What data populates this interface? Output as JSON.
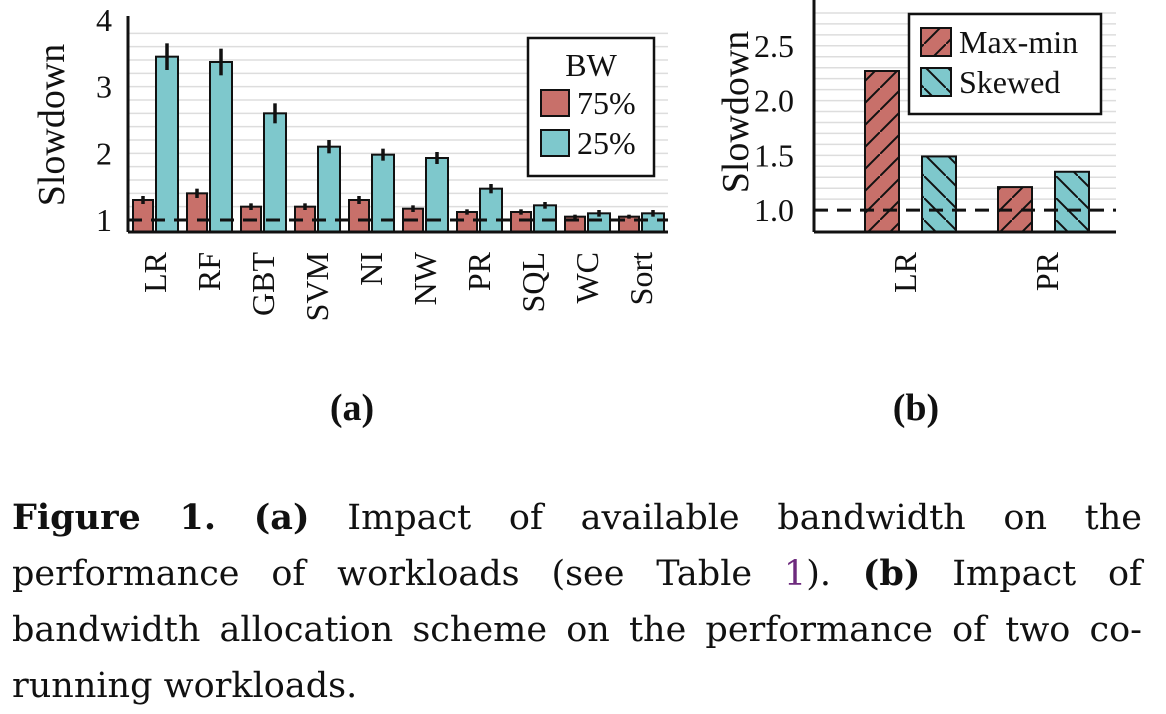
{
  "chart_data": [
    {
      "type": "bar",
      "panel_label": "(a)",
      "categories": [
        "LR",
        "RF",
        "GBT",
        "SVM",
        "NI",
        "NW",
        "PR",
        "SQL",
        "WC",
        "Sort"
      ],
      "ylabel": "Slowdown",
      "xlabel": "",
      "ylim": [
        0.82,
        4.0
      ],
      "yticks": [
        1,
        2,
        3,
        4
      ],
      "grid": true,
      "reference_line": 1.0,
      "legend": {
        "title": "BW",
        "placement": "top-right"
      },
      "series": [
        {
          "name": "75%",
          "color": "#c8706a",
          "values": [
            1.3,
            1.4,
            1.2,
            1.2,
            1.3,
            1.17,
            1.12,
            1.12,
            1.05,
            1.05
          ],
          "errors": [
            0.06,
            0.07,
            0.05,
            0.05,
            0.06,
            0.05,
            0.04,
            0.04,
            0.03,
            0.03
          ]
        },
        {
          "name": "25%",
          "color": "#7ec8cc",
          "values": [
            3.45,
            3.37,
            2.6,
            2.1,
            1.98,
            1.93,
            1.47,
            1.22,
            1.1,
            1.1
          ],
          "errors": [
            0.2,
            0.2,
            0.15,
            0.1,
            0.09,
            0.09,
            0.07,
            0.05,
            0.05,
            0.05
          ]
        }
      ]
    },
    {
      "type": "bar",
      "panel_label": "(b)",
      "categories": [
        "LR",
        "PR"
      ],
      "ylabel": "Slowdown",
      "xlabel": "",
      "ylim": [
        0.8,
        2.9
      ],
      "yticks": [
        "1.0",
        "1.5",
        "2.0",
        "2.5"
      ],
      "grid": true,
      "reference_line": 1.0,
      "legend": {
        "placement": "top-right"
      },
      "series": [
        {
          "name": "Max-min",
          "color": "#c8706a",
          "pattern": "forward-hatch",
          "values": [
            2.27,
            1.21
          ]
        },
        {
          "name": "Skewed",
          "color": "#7ec8cc",
          "pattern": "back-hatch",
          "values": [
            1.49,
            1.35
          ]
        }
      ]
    }
  ],
  "caption": {
    "figure_label": "Figure 1.",
    "a_label": "(a)",
    "a_text": " Impact of available bandwidth on the performance of workloads (see Table ",
    "table_ref": "1",
    "a_end": "). ",
    "b_label": "(b)",
    "b_text": " Impact of bandwidth allocation scheme on the performance of two co-running workloads."
  }
}
